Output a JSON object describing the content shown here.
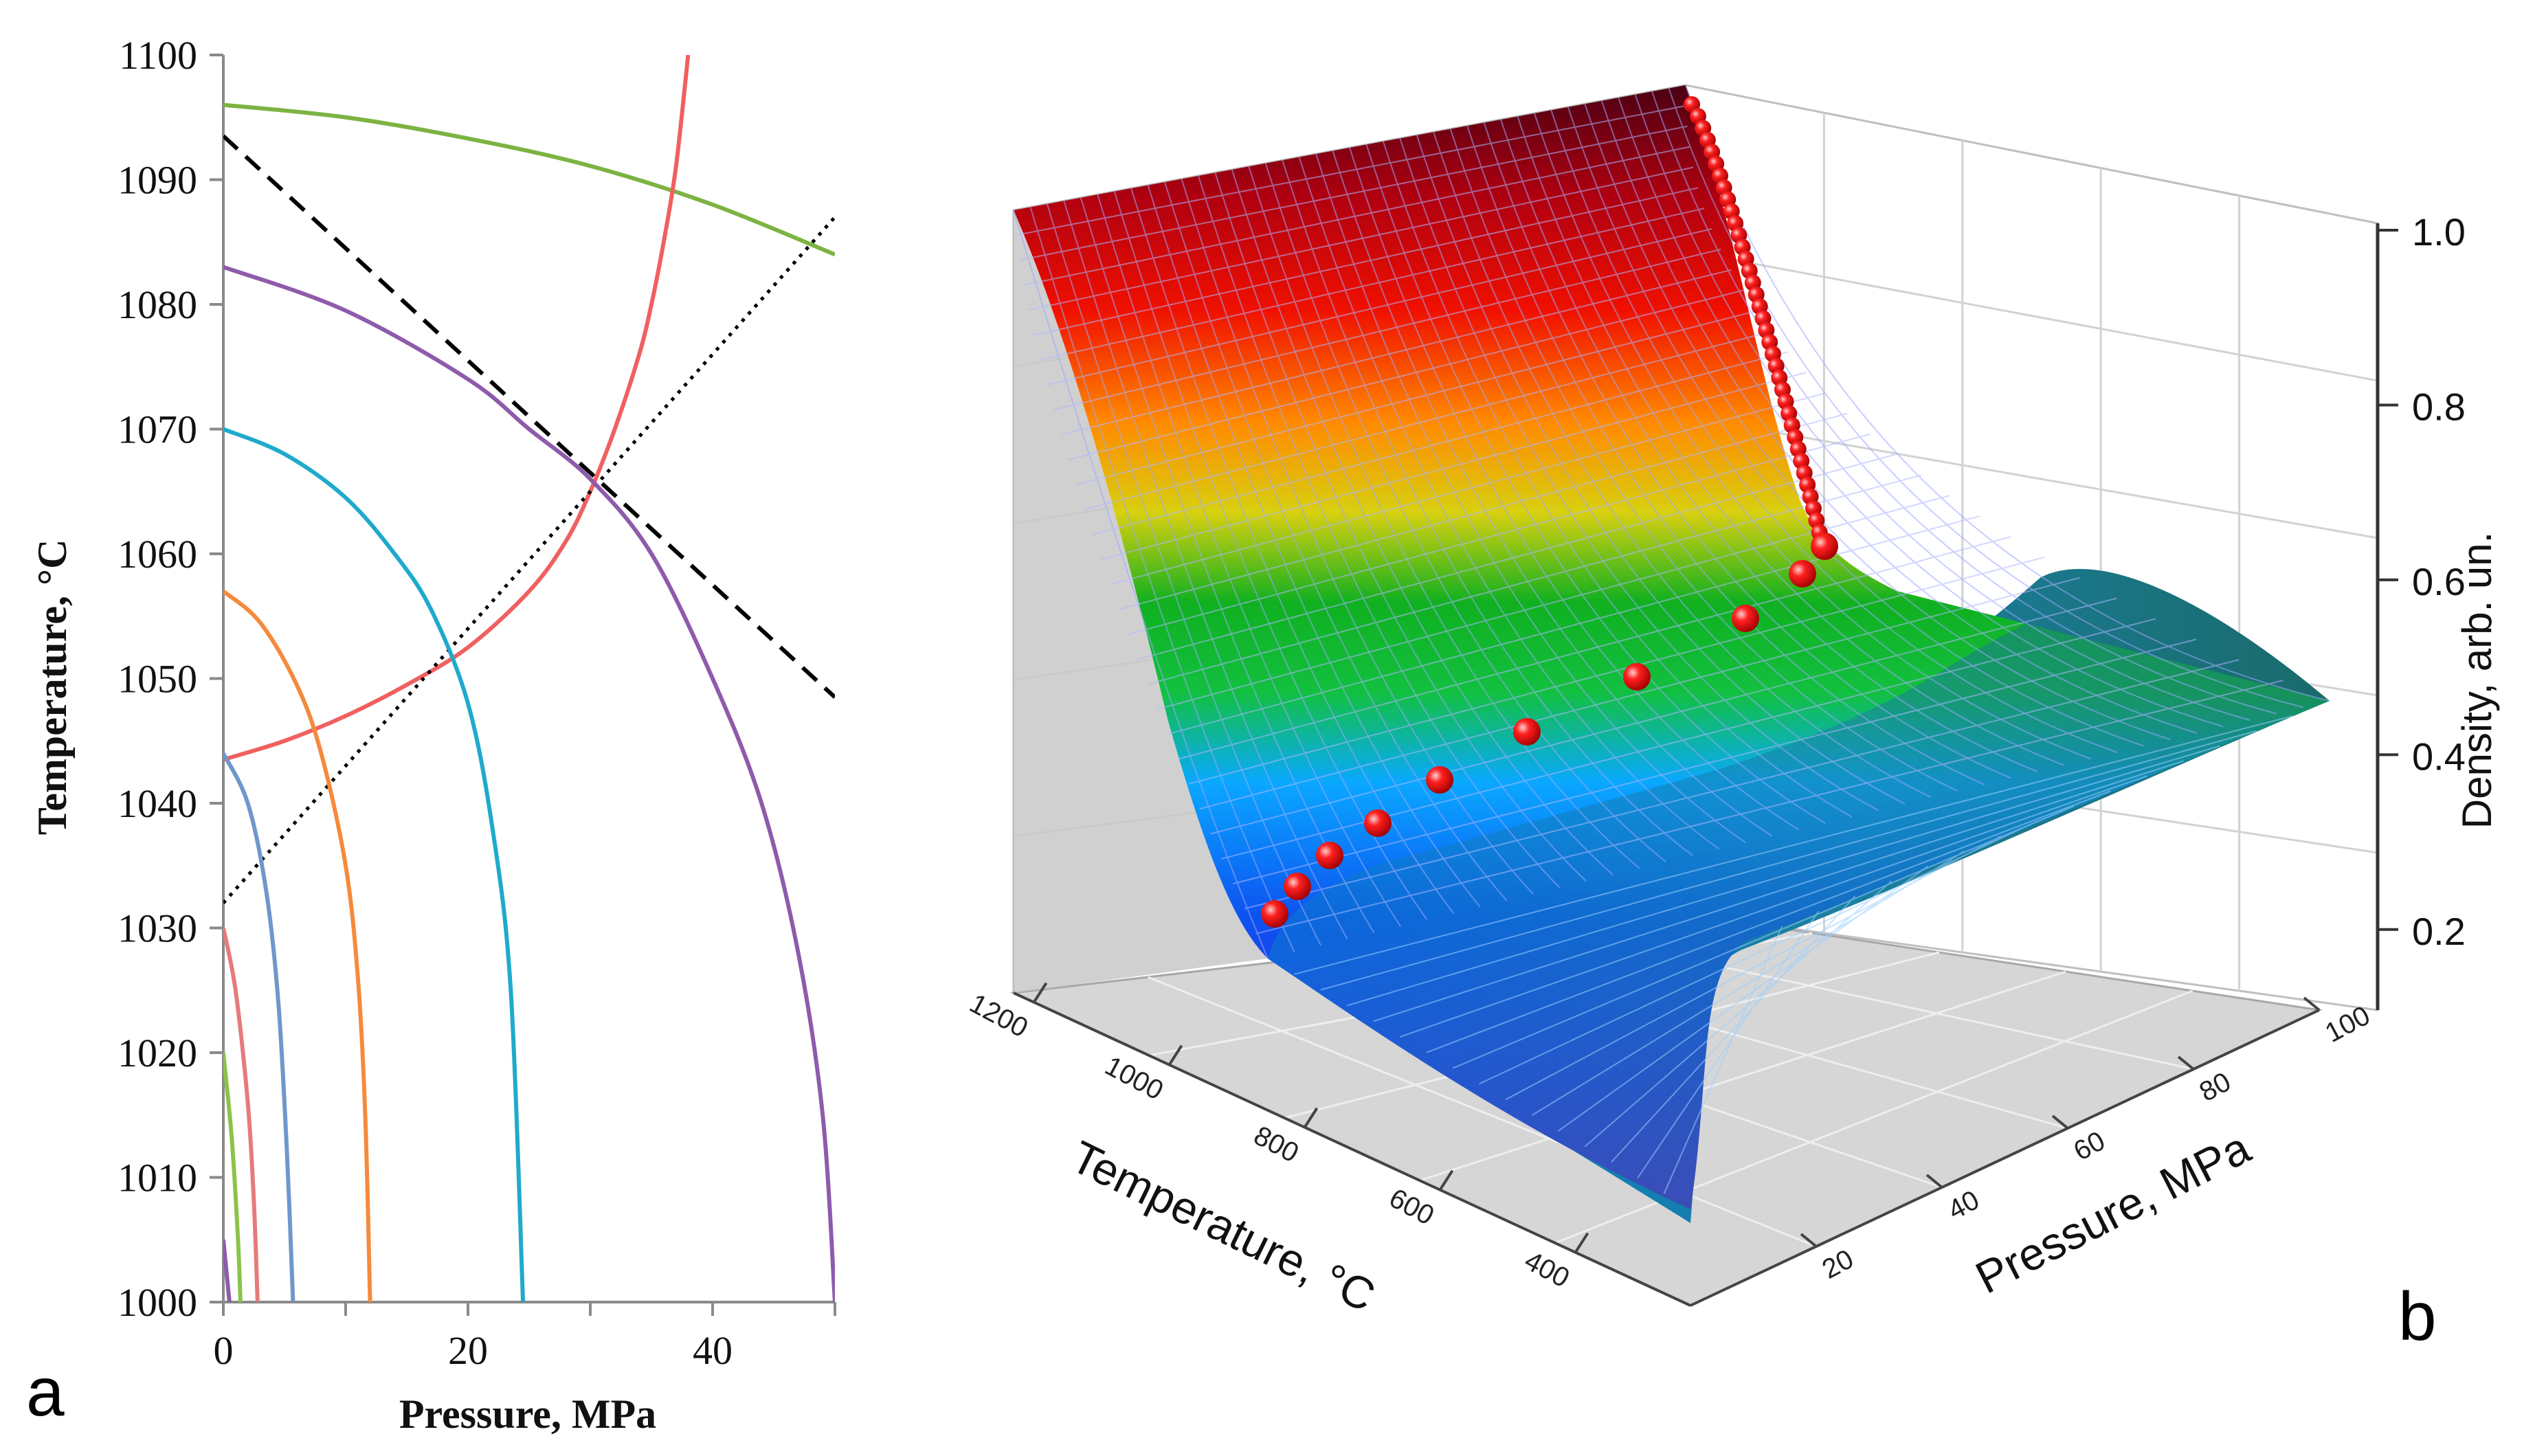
{
  "figure": {
    "panel_a_letter": "a",
    "panel_b_letter": "b"
  },
  "chart_data": [
    {
      "type": "line",
      "panel": "a",
      "xlabel": "Pressure, MPa",
      "ylabel": "Temperature, °C",
      "xlim": [
        0,
        50
      ],
      "ylim": [
        1000,
        1100
      ],
      "x_ticks": [
        "0",
        "20",
        "40"
      ],
      "x_tick_values": [
        0,
        20,
        40
      ],
      "y_ticks": [
        "1000",
        "1010",
        "1020",
        "1030",
        "1040",
        "1050",
        "1060",
        "1070",
        "1080",
        "1090",
        "1100"
      ],
      "y_tick_values": [
        1000,
        1010,
        1020,
        1030,
        1040,
        1050,
        1060,
        1070,
        1080,
        1090,
        1100
      ],
      "series": [
        {
          "color": "#7cb342",
          "style": "solid",
          "x": [
            0,
            10,
            20,
            30,
            40,
            50
          ],
          "y": [
            1096,
            1095,
            1093.3,
            1091.1,
            1088,
            1084
          ]
        },
        {
          "color": "#f06060",
          "style": "solid",
          "x": [
            0,
            5,
            10,
            15,
            20,
            25,
            28,
            30,
            32,
            34,
            35,
            36,
            37,
            38
          ],
          "y": [
            1043.5,
            1045,
            1047,
            1049.5,
            1052.5,
            1057,
            1061,
            1065,
            1070,
            1076,
            1080,
            1085,
            1091,
            1100
          ]
        },
        {
          "color": "#000000",
          "style": "dashed",
          "x": [
            0,
            50
          ],
          "y": [
            1093.5,
            1048.5
          ]
        },
        {
          "color": "#000000",
          "style": "dotted",
          "x": [
            0,
            50
          ],
          "y": [
            1032,
            1087
          ]
        },
        {
          "color": "#8e5bab",
          "style": "solid",
          "x": [
            0,
            10,
            20,
            25,
            30,
            35,
            40,
            44,
            47,
            49,
            50
          ],
          "y": [
            1083,
            1079.5,
            1074,
            1070,
            1066,
            1060,
            1050,
            1040,
            1028,
            1015,
            1000
          ]
        },
        {
          "color": "#1faacc",
          "style": "solid",
          "x": [
            0,
            5,
            10,
            14,
            17,
            20,
            22,
            23.5,
            24.5
          ],
          "y": [
            1070,
            1068,
            1064.5,
            1060,
            1055.5,
            1048,
            1038,
            1025,
            1000
          ]
        },
        {
          "color": "#f58a3c",
          "style": "solid",
          "x": [
            0,
            3,
            6,
            8,
            10,
            11,
            11.6,
            12
          ],
          "y": [
            1057,
            1054.5,
            1049.5,
            1044,
            1035,
            1026,
            1015,
            1000
          ]
        },
        {
          "color": "#6f97cc",
          "style": "solid",
          "x": [
            0,
            2,
            3.5,
            4.5,
            5.2,
            5.7
          ],
          "y": [
            1044,
            1040,
            1033,
            1024,
            1012,
            1000
          ]
        },
        {
          "color": "#e77a7a",
          "style": "solid",
          "x": [
            0,
            1,
            2,
            2.5,
            2.8
          ],
          "y": [
            1030,
            1025,
            1016,
            1008,
            1000
          ]
        },
        {
          "color": "#8bc34a",
          "style": "solid",
          "x": [
            0,
            0.7,
            1.2,
            1.4
          ],
          "y": [
            1020,
            1013,
            1005,
            1000
          ]
        },
        {
          "color": "#8e5bab",
          "style": "solid",
          "x": [
            0,
            0.3,
            0.5
          ],
          "y": [
            1005,
            1002,
            1000
          ]
        }
      ]
    },
    {
      "type": "surface",
      "panel": "b",
      "xlabel": "Temperature, °C",
      "ylabel": "Pressure, MPa",
      "zlabel": "Density, arb. un.",
      "x_ticks": [
        "1200",
        "1000",
        "800",
        "600",
        "400"
      ],
      "y_ticks": [
        "20",
        "40",
        "60",
        "80",
        "100"
      ],
      "z_ticks": [
        "0.2",
        "0.4",
        "0.6",
        "0.8",
        "1.0"
      ],
      "xlim": [
        350,
        1200
      ],
      "ylim": [
        0,
        100
      ],
      "zlim": [
        0.1,
        1.0
      ],
      "colormap": [
        "#7a10c8",
        "#1030e0",
        "#0aa0ff",
        "#10c030",
        "#e0d010",
        "#ff7a00",
        "#ee0000",
        "#5a0010"
      ],
      "marker_color": "#e80000",
      "markers": [
        {
          "pressure": 2,
          "density": 0.25
        },
        {
          "pressure": 6,
          "density": 0.3
        },
        {
          "pressure": 12,
          "density": 0.35
        },
        {
          "pressure": 18,
          "density": 0.38
        },
        {
          "pressure": 28,
          "density": 0.42
        },
        {
          "pressure": 42,
          "density": 0.47
        },
        {
          "pressure": 58,
          "density": 0.52
        },
        {
          "pressure": 74,
          "density": 0.56
        },
        {
          "pressure": 84,
          "density": 0.6
        }
      ]
    }
  ]
}
